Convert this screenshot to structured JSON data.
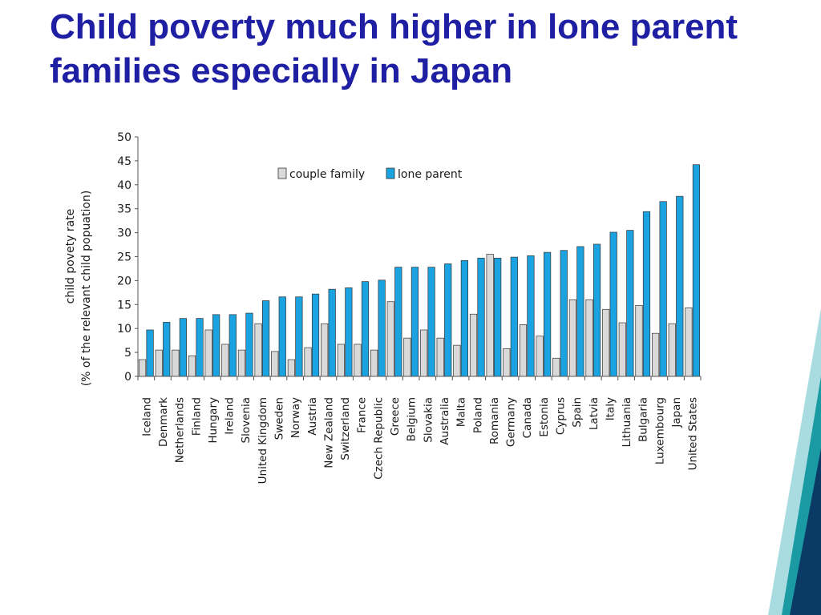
{
  "slide": {
    "title": "Child poverty much higher in lone parent families especially in Japan"
  },
  "colors": {
    "title": "#1f1fa3",
    "couple_family": "#d9d9d9",
    "lone_parent": "#1aa3e0",
    "deco_dark": "#0b3a66",
    "deco_teal": "#1a9aa3",
    "deco_light": "#a8dce0"
  },
  "chart_data": {
    "type": "bar",
    "title": "",
    "ylabel_line1": "child povety rate",
    "ylabel_line2": "(% of the relevant child popuation)",
    "xlabel": "",
    "ylim": [
      0,
      50
    ],
    "yticks": [
      0,
      5,
      10,
      15,
      20,
      25,
      30,
      35,
      40,
      45,
      50
    ],
    "grid": false,
    "legend_position": "top-center",
    "categories": [
      "Iceland",
      "Denmark",
      "Netherlands",
      "Finland",
      "Hungary",
      "Ireland",
      "Slovenia",
      "United Kingdom",
      "Sweden",
      "Norway",
      "Austria",
      "New Zealand",
      "Switzerland",
      "France",
      "Czech Republic",
      "Greece",
      "Belgium",
      "Slovakia",
      "Australia",
      "Malta",
      "Poland",
      "Romania",
      "Germany",
      "Canada",
      "Estonia",
      "Cyprus",
      "Spain",
      "Latvia",
      "Italy",
      "Lithuania",
      "Bulgaria",
      "Luxembourg",
      "Japan",
      "United States"
    ],
    "series": [
      {
        "name": "couple family",
        "values": [
          3.5,
          5.5,
          5.5,
          4.3,
          9.7,
          6.7,
          5.5,
          11.0,
          5.2,
          3.5,
          6.0,
          11.0,
          6.7,
          6.7,
          5.5,
          15.6,
          8.0,
          9.7,
          8.0,
          6.5,
          13.0,
          25.5,
          5.8,
          10.8,
          8.4,
          3.8,
          16.0,
          16.0,
          14.0,
          11.2,
          14.8,
          9.0,
          11.0,
          14.3
        ]
      },
      {
        "name": "lone parent",
        "values": [
          9.7,
          11.3,
          12.1,
          12.1,
          12.9,
          12.9,
          13.2,
          15.8,
          16.6,
          16.6,
          17.2,
          18.2,
          18.5,
          19.8,
          20.1,
          22.8,
          22.8,
          22.8,
          23.5,
          24.2,
          24.7,
          24.7,
          24.9,
          25.2,
          25.9,
          26.3,
          27.1,
          27.6,
          30.1,
          30.5,
          34.4,
          36.5,
          37.6,
          44.2
        ]
      }
    ]
  }
}
